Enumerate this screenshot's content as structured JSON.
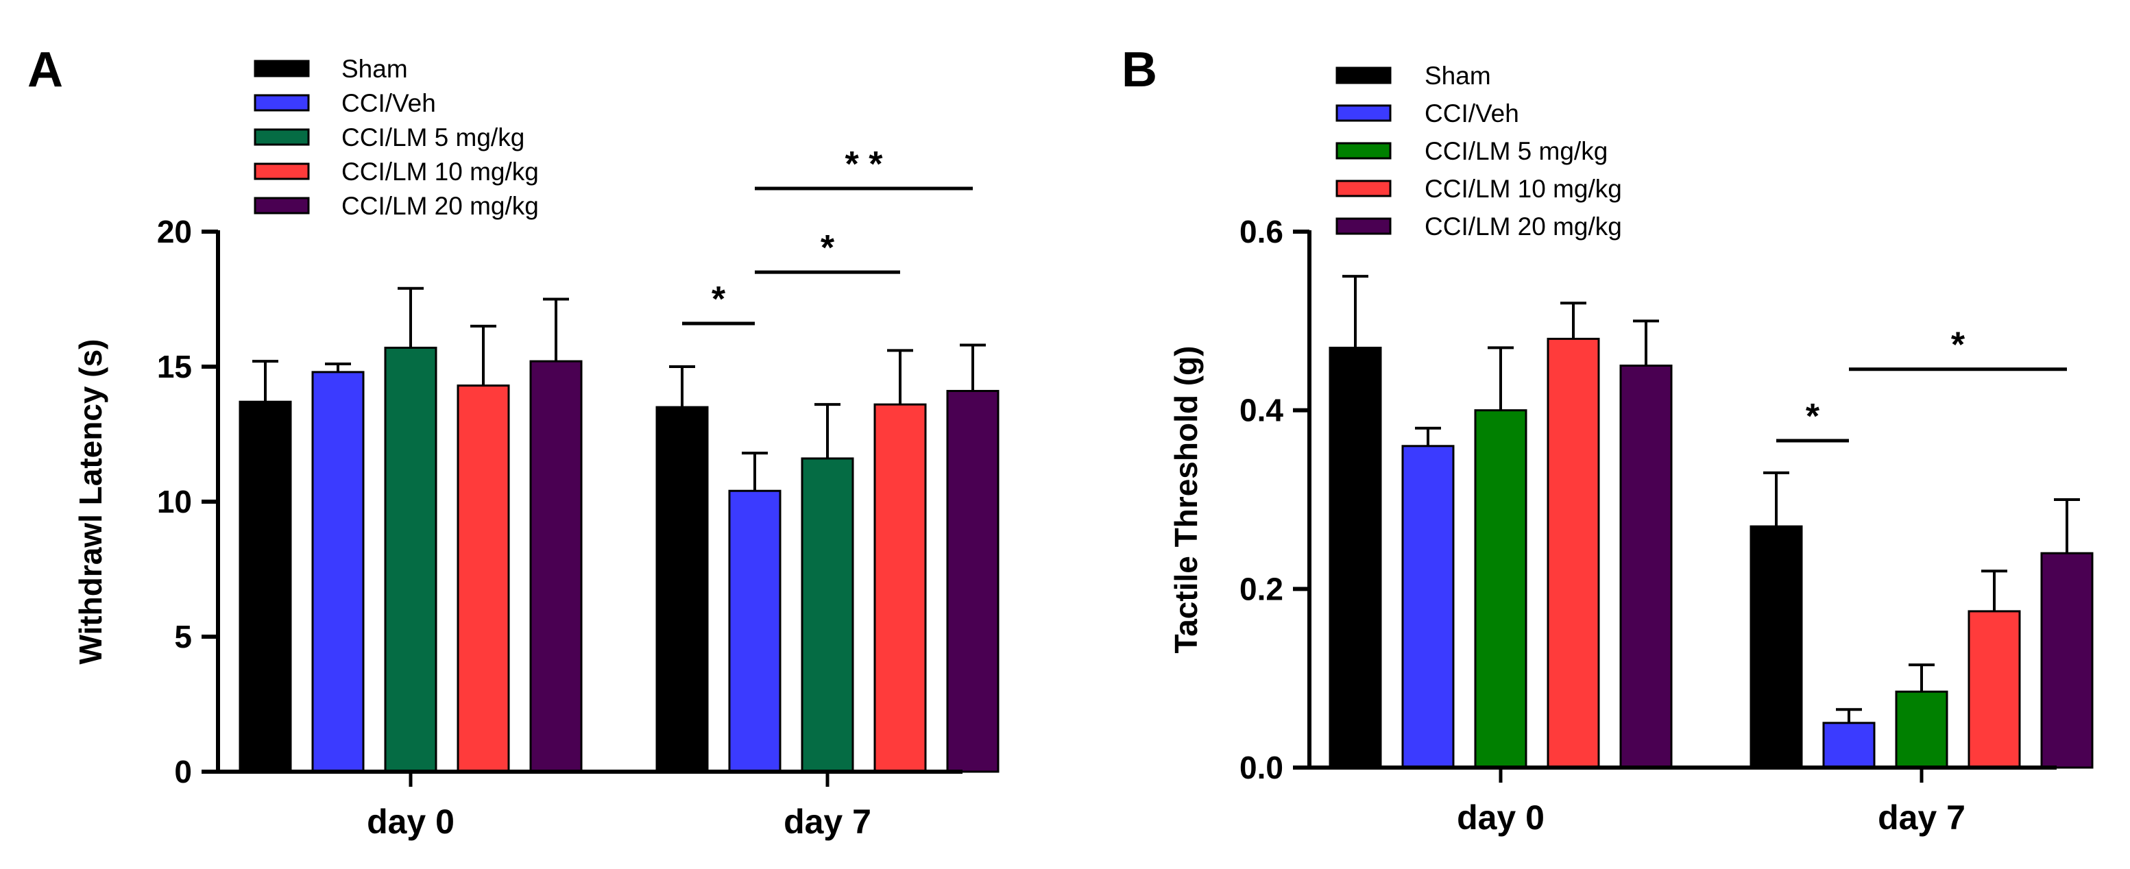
{
  "chart_data": [
    {
      "type": "bar",
      "panel_label": "A",
      "ylabel": "Withdrawl Latency (s)",
      "xlabel": "",
      "categories": [
        "day 0",
        "day 7"
      ],
      "ylim": [
        0,
        20
      ],
      "yticks": [
        "0",
        "5",
        "10",
        "15",
        "20"
      ],
      "grid": false,
      "legend_position": "top-left",
      "series": [
        {
          "name": "Sham",
          "color": "#000000",
          "values": [
            13.7,
            13.5
          ],
          "errors": [
            1.5,
            1.5
          ]
        },
        {
          "name": "CCI/Veh",
          "color": "#3b3bff",
          "values": [
            14.8,
            10.4
          ],
          "errors": [
            0.3,
            1.4
          ]
        },
        {
          "name": "CCI/LM 5 mg/kg",
          "color": "#056c44",
          "values": [
            15.7,
            11.6
          ],
          "errors": [
            2.2,
            2.0
          ]
        },
        {
          "name": "CCI/LM 10 mg/kg",
          "color": "#ff3b3b",
          "values": [
            14.3,
            13.6
          ],
          "errors": [
            2.2,
            2.0
          ]
        },
        {
          "name": "CCI/LM 20 mg/kg",
          "color": "#4a0052",
          "values": [
            15.2,
            14.1
          ],
          "errors": [
            2.3,
            1.7
          ]
        }
      ],
      "annotations": [
        {
          "text": "*",
          "category": 1,
          "from_series": 0,
          "to_series": 1,
          "level": 16.6
        },
        {
          "text": "*",
          "category": 1,
          "from_series": 1,
          "to_series": 3,
          "level": 18.5
        },
        {
          "text": "* *",
          "category": 1,
          "from_series": 1,
          "to_series": 4,
          "level": 21.6
        }
      ]
    },
    {
      "type": "bar",
      "panel_label": "B",
      "ylabel": "Tactile Threshold (g)",
      "xlabel": "",
      "categories": [
        "day 0",
        "day 7"
      ],
      "ylim": [
        0,
        0.6
      ],
      "yticks": [
        "0.0",
        "0.2",
        "0.4",
        "0.6"
      ],
      "grid": false,
      "legend_position": "top-left",
      "series": [
        {
          "name": "Sham",
          "color": "#000000",
          "values": [
            0.47,
            0.27
          ],
          "errors": [
            0.08,
            0.06
          ]
        },
        {
          "name": "CCI/Veh",
          "color": "#3b3bff",
          "values": [
            0.36,
            0.05
          ],
          "errors": [
            0.02,
            0.015
          ]
        },
        {
          "name": "CCI/LM 5 mg/kg",
          "color": "#008000",
          "values": [
            0.4,
            0.085
          ],
          "errors": [
            0.07,
            0.03
          ]
        },
        {
          "name": "CCI/LM 10 mg/kg",
          "color": "#ff3b3b",
          "values": [
            0.48,
            0.175
          ],
          "errors": [
            0.04,
            0.045
          ]
        },
        {
          "name": "CCI/LM 20 mg/kg",
          "color": "#4a0052",
          "values": [
            0.45,
            0.24
          ],
          "errors": [
            0.05,
            0.06
          ]
        }
      ],
      "annotations": [
        {
          "text": "*",
          "category": 1,
          "from_series": 0,
          "to_series": 1,
          "level": 0.366
        },
        {
          "text": "*",
          "category": 1,
          "from_series": 1,
          "to_series": 4,
          "level": 0.446
        }
      ]
    }
  ]
}
